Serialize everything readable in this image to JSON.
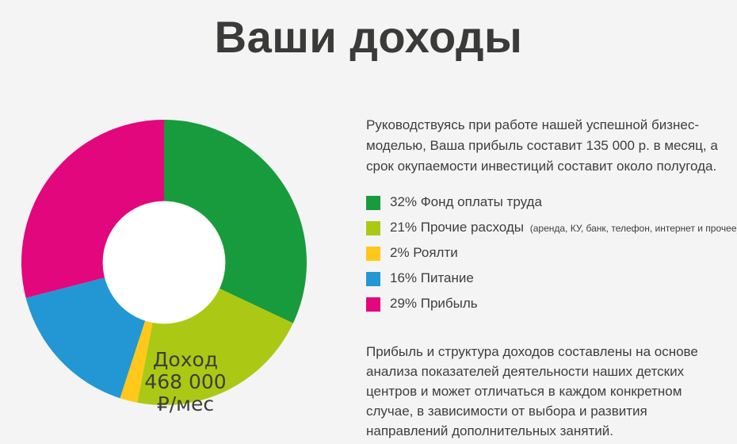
{
  "page": {
    "title": "Ваши доходы",
    "background_color": "#f4f4f4",
    "text_color": "#3e3e3d"
  },
  "intro_paragraph": "Руководствуясь при работе нашей успешной бизнес-моделью, Ваша прибыль составит 135 000 р. в месяц, а срок окупаемости инвестиций составит около полугода.",
  "footer_paragraph": "Прибыль и структура доходов составлены на основе анализа показателей деятельности наших детских центров и может отличаться в каждом конкретном случае, в зависимости от выбора и развития направлений дополнительных занятий.",
  "chart_data": {
    "type": "pie",
    "donut": true,
    "start_angle_deg": 0,
    "direction": "clockwise",
    "inner_radius_ratio": 0.43,
    "legend_position": "right",
    "center_label": {
      "line1": "Доход",
      "line2": "468 000",
      "line3": "₽/мес"
    },
    "series": [
      {
        "name": "Фонд оплаты труда",
        "percent": 32,
        "color": "#189b3c",
        "legend_text": "32% Фонд оплаты труда",
        "note": ""
      },
      {
        "name": "Прочие расходы",
        "percent": 21,
        "color": "#abc914",
        "legend_text": "21% Прочие расходы",
        "note": "(аренда, КУ, банк, телефон, интернет и прочее)"
      },
      {
        "name": "Роялти",
        "percent": 2,
        "color": "#ffc81a",
        "legend_text": "2% Роялти",
        "note": ""
      },
      {
        "name": "Питание",
        "percent": 16,
        "color": "#2297d3",
        "legend_text": "16% Питание",
        "note": ""
      },
      {
        "name": "Прибыль",
        "percent": 29,
        "color": "#e2077d",
        "legend_text": "29% Прибыль",
        "note": ""
      }
    ]
  }
}
